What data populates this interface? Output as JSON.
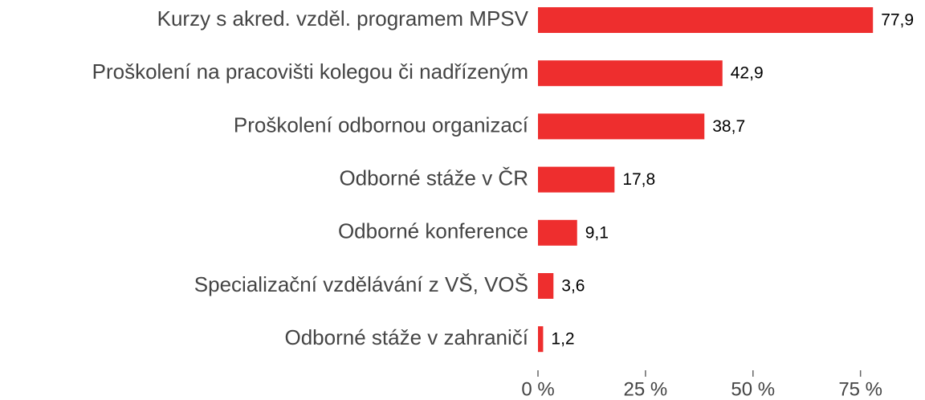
{
  "chart_data": {
    "type": "bar",
    "categories": [
      "Kurzy s akred. vzděl. programem MPSV",
      "Proškolení na pracovišti kolegou či nadřízeným",
      "Proškolení odbornou organizací",
      "Odborné stáže v ČR",
      "Odborné konference",
      "Specializační vzdělávání z VŠ, VOŠ",
      "Odborné stáže v zahraničí"
    ],
    "values": [
      77.9,
      42.9,
      38.7,
      17.8,
      9.1,
      3.6,
      1.2
    ],
    "value_labels": [
      "77,9",
      "42,9",
      "38,7",
      "17,8",
      "9,1",
      "3,6",
      "1,2"
    ],
    "color": "#ee2e2e",
    "xlim": [
      0,
      90
    ],
    "xticks": [
      {
        "value": 0,
        "label": "0 %"
      },
      {
        "value": 25,
        "label": "25 %"
      },
      {
        "value": 50,
        "label": "50 %"
      },
      {
        "value": 75,
        "label": "75 %"
      }
    ]
  }
}
